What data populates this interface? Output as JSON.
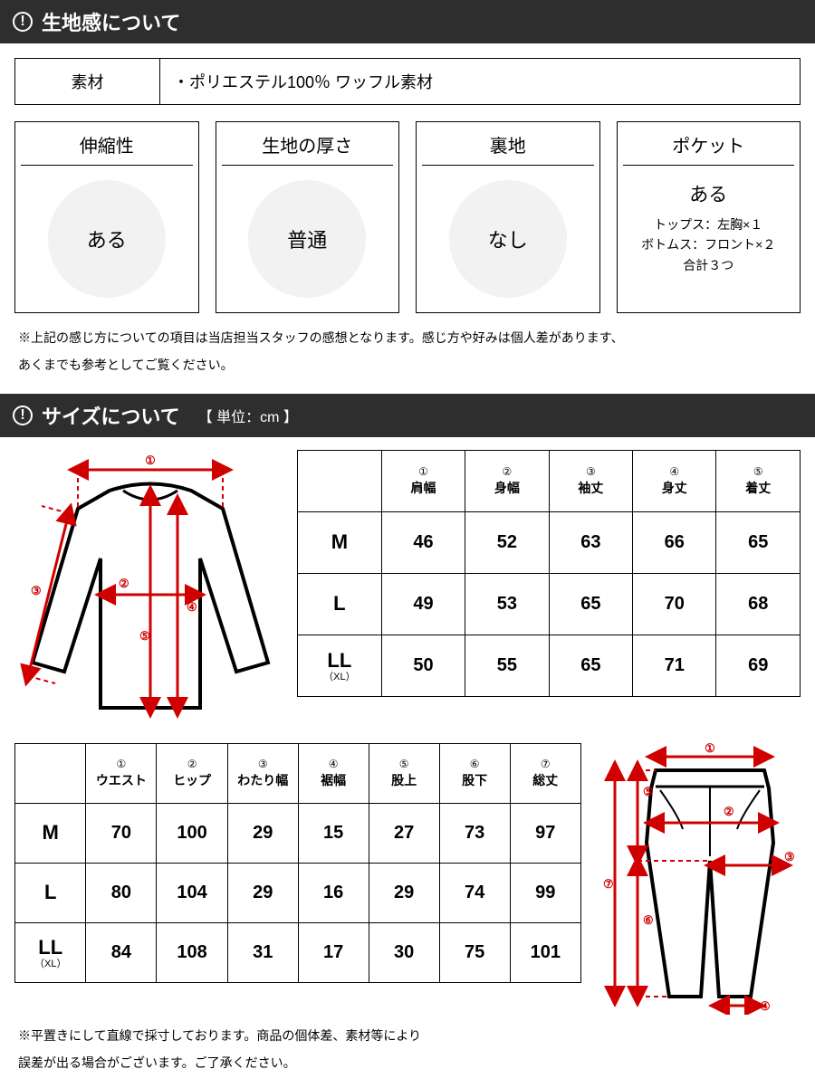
{
  "colors": {
    "header_bg": "#2e2e2e",
    "accent": "#d10000",
    "circle_bg": "#f2f2f2",
    "border": "#000000"
  },
  "fabric": {
    "header": "生地感について",
    "material_label": "素材",
    "material_value": "・ポリエステル100％ ワッフル素材",
    "features": {
      "stretch": {
        "title": "伸縮性",
        "value": "ある"
      },
      "thickness": {
        "title": "生地の厚さ",
        "value": "普通"
      },
      "lining": {
        "title": "裏地",
        "value": "なし"
      },
      "pocket": {
        "title": "ポケット",
        "value": "ある",
        "line1": "トップス：左胸×１",
        "line2": "ボトムス：フロント×２",
        "line3": "合計３つ"
      }
    },
    "note1": "※上記の感じ方についての項目は当店担当スタッフの感想となります。感じ方や好みは個人差があります、",
    "note2": "あくまでも参考としてご覧ください。"
  },
  "size": {
    "header": "サイズについて",
    "unit": "【 単位：cm 】",
    "tops": {
      "headers": [
        {
          "num": "①",
          "label": "肩幅"
        },
        {
          "num": "②",
          "label": "身幅"
        },
        {
          "num": "③",
          "label": "袖丈"
        },
        {
          "num": "④",
          "label": "身丈"
        },
        {
          "num": "⑤",
          "label": "着丈"
        }
      ],
      "rows": [
        {
          "size": "M",
          "xl": "",
          "vals": [
            "46",
            "52",
            "63",
            "66",
            "65"
          ]
        },
        {
          "size": "L",
          "xl": "",
          "vals": [
            "49",
            "53",
            "65",
            "70",
            "68"
          ]
        },
        {
          "size": "LL",
          "xl": "（XL）",
          "vals": [
            "50",
            "55",
            "65",
            "71",
            "69"
          ]
        }
      ]
    },
    "pants": {
      "headers": [
        {
          "num": "①",
          "label": "ウエスト"
        },
        {
          "num": "②",
          "label": "ヒップ"
        },
        {
          "num": "③",
          "label": "わたり幅"
        },
        {
          "num": "④",
          "label": "裾幅"
        },
        {
          "num": "⑤",
          "label": "股上"
        },
        {
          "num": "⑥",
          "label": "股下"
        },
        {
          "num": "⑦",
          "label": "総丈"
        }
      ],
      "rows": [
        {
          "size": "M",
          "xl": "",
          "vals": [
            "70",
            "100",
            "29",
            "15",
            "27",
            "73",
            "97"
          ]
        },
        {
          "size": "L",
          "xl": "",
          "vals": [
            "80",
            "104",
            "29",
            "16",
            "29",
            "74",
            "99"
          ]
        },
        {
          "size": "LL",
          "xl": "（XL）",
          "vals": [
            "84",
            "108",
            "31",
            "17",
            "30",
            "75",
            "101"
          ]
        }
      ]
    },
    "footnote1": "※平置きにして直線で採寸しております。商品の個体差、素材等により",
    "footnote2": "誤差が出る場合がございます。ご了承ください。"
  }
}
